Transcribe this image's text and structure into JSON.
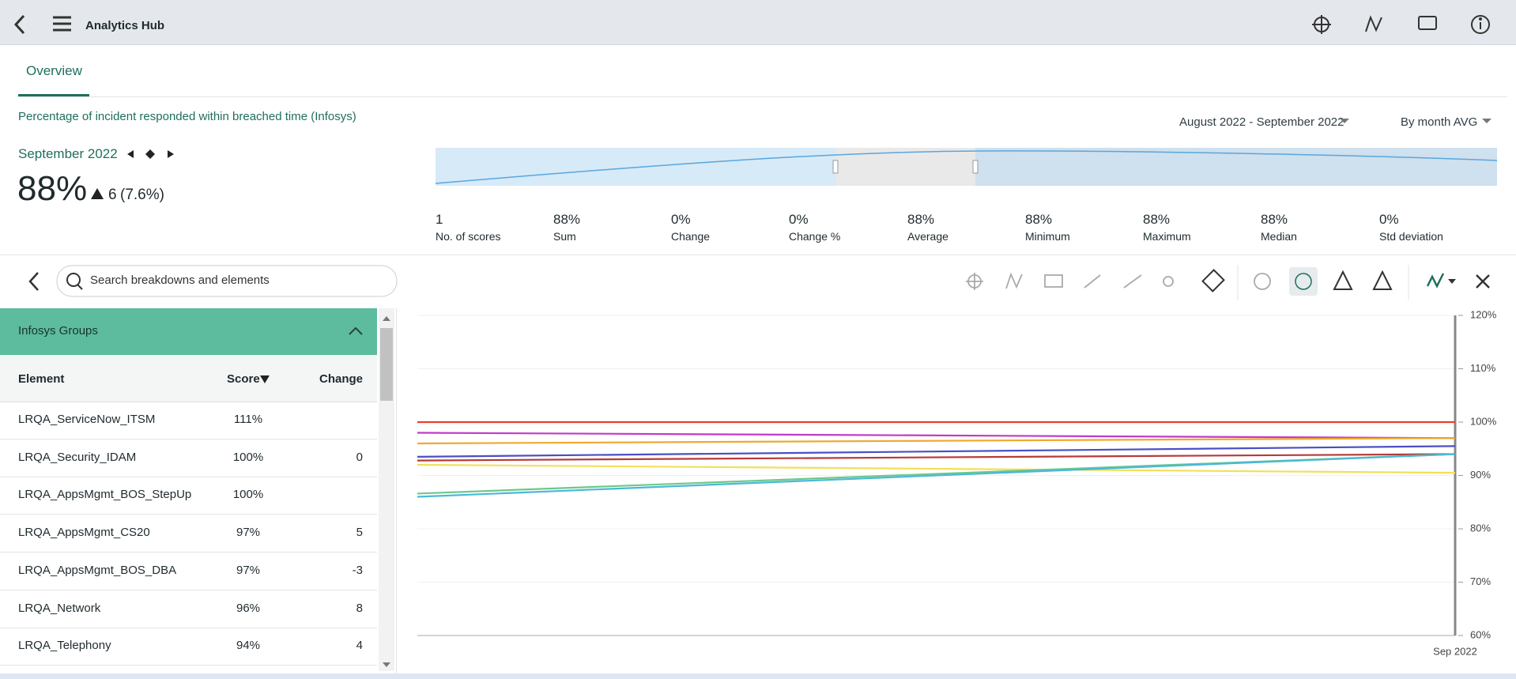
{
  "header": {
    "title": "Analytics Hub"
  },
  "tabs": [
    "Overview"
  ],
  "indicator": {
    "title": "Percentage of incident responded within breached time (Infosys)",
    "date_range": "August 2022 - September 2022",
    "aggregation": "By month AVG",
    "period": "September 2022",
    "score": "88%",
    "change": "6",
    "change_pct": "(7.6%)"
  },
  "stats": [
    {
      "value": "1",
      "label": "No. of scores"
    },
    {
      "value": "88%",
      "label": "Sum"
    },
    {
      "value": "0%",
      "label": "Change"
    },
    {
      "value": "0%",
      "label": "Change %"
    },
    {
      "value": "88%",
      "label": "Average"
    },
    {
      "value": "88%",
      "label": "Minimum"
    },
    {
      "value": "88%",
      "label": "Maximum"
    },
    {
      "value": "88%",
      "label": "Median"
    },
    {
      "value": "0%",
      "label": "Std deviation"
    }
  ],
  "search": {
    "placeholder": "Search breakdowns and elements"
  },
  "breakdown": {
    "title": "Infosys Groups",
    "columns": [
      "Element",
      "Score",
      "Change"
    ],
    "rows": [
      {
        "element": "LRQA_ServiceNow_ITSM",
        "score": "111%"
      },
      {
        "element": "LRQA_Security_IDAM",
        "score": "100%",
        "change": "0"
      },
      {
        "element": "LRQA_AppsMgmt_BOS_StepUp",
        "score": "100%"
      },
      {
        "element": "LRQA_AppsMgmt_CS20",
        "score": "97%",
        "change": "5"
      },
      {
        "element": "LRQA_AppsMgmt_BOS_DBA",
        "score": "97%",
        "change": "-3"
      },
      {
        "element": "LRQA_Network",
        "score": "96%",
        "change": "8"
      },
      {
        "element": "LRQA_Telephony",
        "score": "94%",
        "change": "4"
      }
    ]
  },
  "chart_data": {
    "type": "line",
    "categories": [
      null,
      "Sep 2022"
    ],
    "series": [
      {
        "color": "#e8412c",
        "values": [
          100,
          100
        ]
      },
      {
        "color": "#c23ac9",
        "values": [
          98,
          97
        ]
      },
      {
        "color": "#f0a830",
        "values": [
          96,
          97
        ]
      },
      {
        "color": "#4a4fc4",
        "values": [
          93.5,
          95.5
        ]
      },
      {
        "color": "#b83a3a",
        "values": [
          92.8,
          94
        ]
      },
      {
        "color": "#f2e05a",
        "values": [
          92,
          90.5
        ]
      },
      {
        "color": "#6cc98a",
        "values": [
          86.6,
          94
        ]
      },
      {
        "color": "#4ab8d8",
        "values": [
          86,
          94
        ]
      }
    ],
    "ylim": [
      60,
      120
    ],
    "yticks": [
      {
        "value": 60,
        "label": "60%"
      },
      {
        "value": 70,
        "label": "70%"
      },
      {
        "value": 80,
        "label": "80%"
      },
      {
        "value": 90,
        "label": "90%"
      },
      {
        "value": 100,
        "label": "100%"
      },
      {
        "value": 110,
        "label": "110%"
      },
      {
        "value": 120,
        "label": "120%"
      }
    ],
    "grid": true
  }
}
